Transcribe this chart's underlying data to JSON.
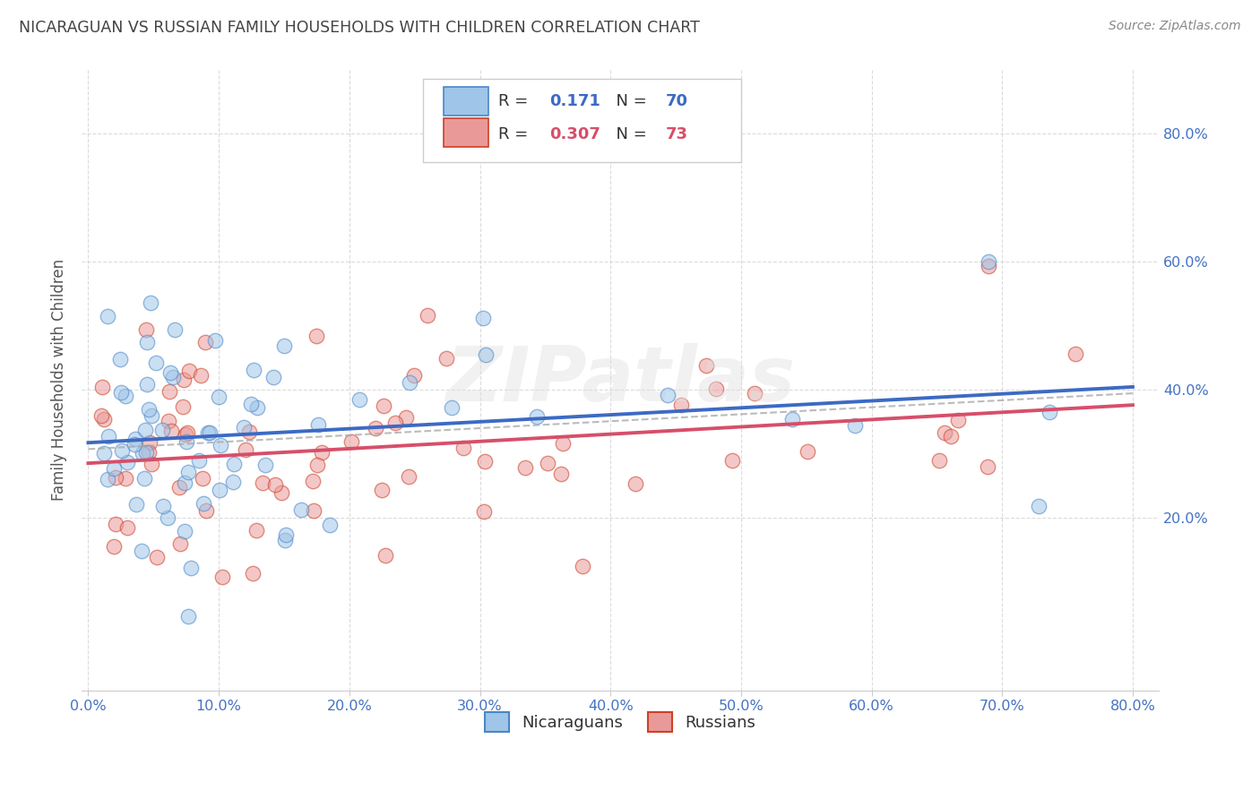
{
  "title": "NICARAGUAN VS RUSSIAN FAMILY HOUSEHOLDS WITH CHILDREN CORRELATION CHART",
  "source": "Source: ZipAtlas.com",
  "ylabel": "Family Households with Children",
  "legend_nicaraguans": "Nicaraguans",
  "legend_russians": "Russians",
  "R_nicaraguans": 0.171,
  "N_nicaraguans": 70,
  "R_russians": 0.307,
  "N_russians": 73,
  "xlim": [
    -0.005,
    0.82
  ],
  "ylim": [
    -0.07,
    0.9
  ],
  "xticks": [
    0.0,
    0.1,
    0.2,
    0.3,
    0.4,
    0.5,
    0.6,
    0.7,
    0.8
  ],
  "yticks": [
    0.2,
    0.4,
    0.6,
    0.8
  ],
  "color_blue_fill": "#9fc5e8",
  "color_blue_edge": "#4a86c8",
  "color_pink_fill": "#ea9999",
  "color_pink_edge": "#cc4125",
  "color_blue_line": "#3c6ac4",
  "color_pink_line": "#d64f6a",
  "color_dash_line": "#aaaaaa",
  "background_color": "#ffffff",
  "watermark": "ZIPatlas",
  "blue_trend_start_y": 0.33,
  "blue_trend_end_y": 0.44,
  "pink_trend_start_y": 0.25,
  "pink_trend_end_y": 0.45
}
